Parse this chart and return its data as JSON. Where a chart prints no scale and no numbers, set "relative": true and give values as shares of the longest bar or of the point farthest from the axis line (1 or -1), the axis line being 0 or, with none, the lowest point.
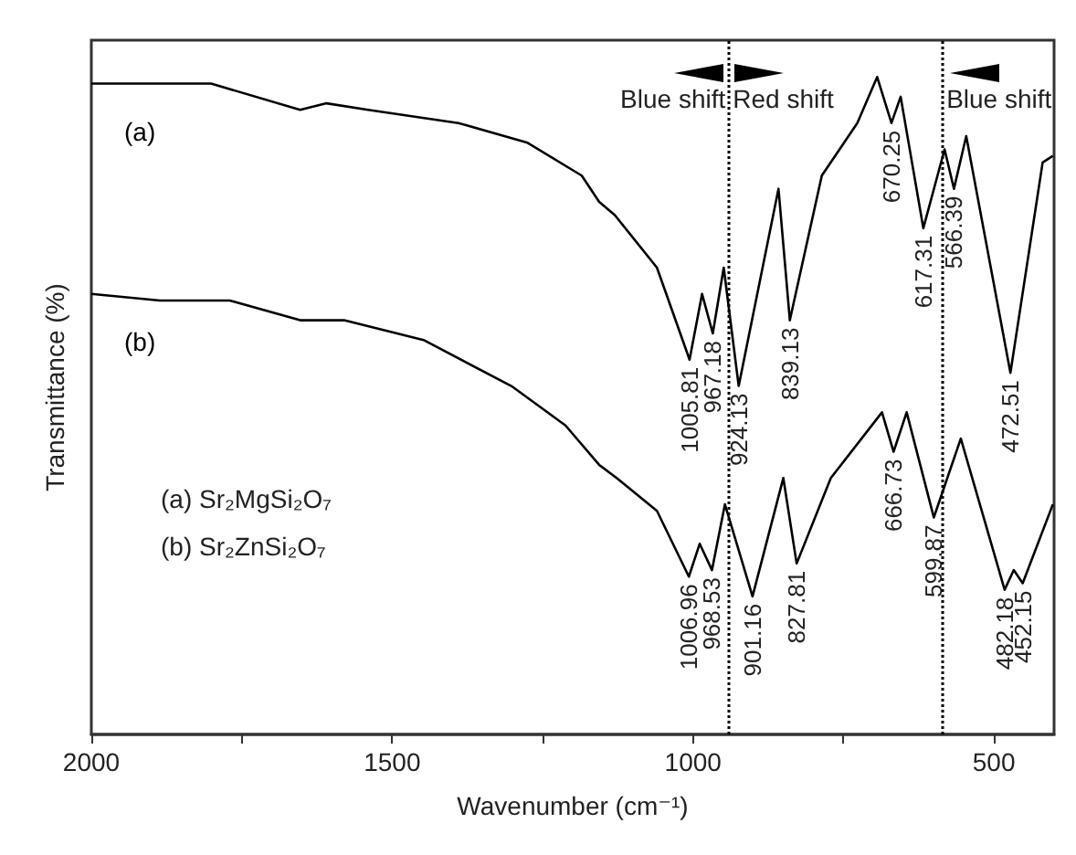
{
  "chart_data": {
    "type": "line",
    "xlabel": "Wavenumber (cm⁻¹)",
    "ylabel": "Transmittance (%)",
    "relative": true,
    "xlim": [
      2000,
      400
    ],
    "xticks": [
      2000,
      {
        "value": 1750,
        "label": null
      },
      1500,
      {
        "value": 1250,
        "label": null
      },
      1000,
      {
        "value": 750,
        "label": null
      },
      500
    ],
    "tick_labels": "x",
    "grid": false,
    "legend": false,
    "marker": "none",
    "line_style": "solid",
    "series": [
      {
        "name": "(a)",
        "color": "#000000",
        "x": [
          2000,
          1886,
          1801,
          1653,
          1609,
          1540,
          1390,
          1275,
          1185,
          1156,
          1130,
          1060,
          1005.81,
          985,
          967.18,
          949,
          924.13,
          858,
          839.13,
          786,
          727,
          694,
          670.25,
          655,
          617.31,
          582,
          566.39,
          546,
          472.51,
          419,
          402
        ],
        "values": [
          0.99,
          0.99,
          0.99,
          0.95,
          0.96,
          0.95,
          0.93,
          0.9,
          0.85,
          0.81,
          0.79,
          0.71,
          0.57,
          0.67,
          0.61,
          0.71,
          0.53,
          0.83,
          0.63,
          0.85,
          0.93,
          1.0,
          0.93,
          0.97,
          0.77,
          0.89,
          0.83,
          0.91,
          0.55,
          0.87,
          0.88
        ]
      },
      {
        "name": "(b)",
        "color": "#000000",
        "x": [
          2000,
          1886,
          1770,
          1653,
          1580,
          1448,
          1302,
          1212,
          1156,
          1127,
          1060,
          1006.96,
          989,
          968.53,
          947,
          901.16,
          850,
          827.81,
          771,
          686,
          666.73,
          645,
          599.87,
          555,
          482.18,
          467,
          452.15,
          402
        ],
        "values": [
          0.67,
          0.66,
          0.66,
          0.63,
          0.63,
          0.6,
          0.53,
          0.47,
          0.41,
          0.39,
          0.34,
          0.24,
          0.29,
          0.25,
          0.35,
          0.21,
          0.39,
          0.26,
          0.39,
          0.49,
          0.43,
          0.49,
          0.33,
          0.45,
          0.22,
          0.25,
          0.23,
          0.35
        ]
      }
    ],
    "ref_lines": [
      {
        "axis": "x",
        "value": 940,
        "color": "#000000",
        "line_style": "dotted"
      },
      {
        "axis": "x",
        "value": 585,
        "color": "#000000",
        "line_style": "dotted"
      }
    ],
    "annotations": [
      "Blue shift",
      "Red shift",
      "Blue shift",
      {
        "text": "1005.81",
        "x": 1005.81,
        "y": 0.57
      },
      {
        "text": "967.18",
        "x": 967.18,
        "y": 0.61
      },
      {
        "text": "924.13",
        "x": 924.13,
        "y": 0.53
      },
      {
        "text": "839.13",
        "x": 839.13,
        "y": 0.63
      },
      {
        "text": "670.25",
        "x": 670.25,
        "y": 0.93
      },
      {
        "text": "617.31",
        "x": 617.31,
        "y": 0.77
      },
      {
        "text": "566.39",
        "x": 566.39,
        "y": 0.83
      },
      {
        "text": "472.51",
        "x": 472.51,
        "y": 0.55
      },
      {
        "text": "1006.96",
        "x": 1006.96,
        "y": 0.24
      },
      {
        "text": "968.53",
        "x": 968.53,
        "y": 0.25
      },
      {
        "text": "901.16",
        "x": 901.16,
        "y": 0.21
      },
      {
        "text": "827.81",
        "x": 827.81,
        "y": 0.26
      },
      {
        "text": "666.73",
        "x": 666.73,
        "y": 0.43
      },
      {
        "text": "599.87",
        "x": 599.87,
        "y": 0.33
      },
      {
        "text": "482.18",
        "x": 482.18,
        "y": 0.22
      },
      {
        "text": "452.15",
        "x": 452.15,
        "y": 0.23
      },
      "(a) Sr₂MgSi₂O₇",
      "(b) Sr₂ZnSi₂O₇"
    ]
  }
}
